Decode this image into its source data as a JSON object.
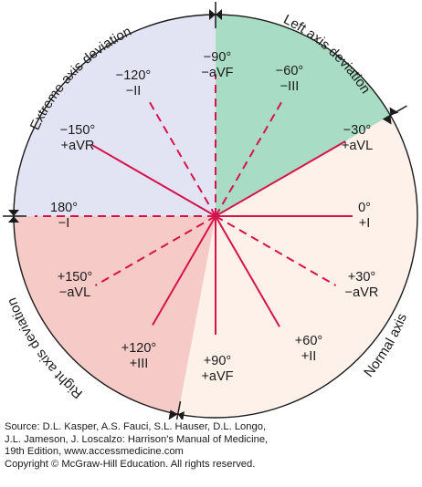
{
  "regions": [
    {
      "label": "Extreme axis deviation",
      "color": "#e2e4f3"
    },
    {
      "label": "Left axis deviation",
      "color": "#a9dcc4"
    },
    {
      "label": "Normal axis",
      "color": "#fdf1ea"
    },
    {
      "label": "Right axis deviation",
      "color": "#f6cac6"
    }
  ],
  "leads": [
    {
      "angle": 0,
      "angle_text": "0°",
      "lead": "+I",
      "style": "solid"
    },
    {
      "angle": 30,
      "angle_text": "+30°",
      "lead": "−aVR",
      "style": "dashed"
    },
    {
      "angle": 60,
      "angle_text": "+60°",
      "lead": "+II",
      "style": "solid"
    },
    {
      "angle": 90,
      "angle_text": "+90°",
      "lead": "+aVF",
      "style": "solid"
    },
    {
      "angle": 120,
      "angle_text": "+120°",
      "lead": "+III",
      "style": "solid"
    },
    {
      "angle": 150,
      "angle_text": "+150°",
      "lead": "−aVL",
      "style": "dashed"
    },
    {
      "angle": 180,
      "angle_text": "180°",
      "lead": "−I",
      "style": "dashed"
    },
    {
      "angle": -150,
      "angle_text": "−150°",
      "lead": "+aVR",
      "style": "solid"
    },
    {
      "angle": -120,
      "angle_text": "−120°",
      "lead": "−II",
      "style": "dashed"
    },
    {
      "angle": -90,
      "angle_text": "−90°",
      "lead": "−aVF",
      "style": "dashed"
    },
    {
      "angle": -60,
      "angle_text": "−60°",
      "lead": "−III",
      "style": "dashed"
    },
    {
      "angle": -30,
      "angle_text": "−30°",
      "lead": "+aVL",
      "style": "solid"
    }
  ],
  "line_color": "#d6124a",
  "source": [
    "Source: D.L. Kasper, A.S. Fauci, S.L. Hauser, D.L. Longo,",
    "J.L. Jameson, J. Loscalzo: Harrison's Manual of Medicine,",
    "19th Edition, www.accessmedicine.com",
    "Copyright © McGraw-Hill Education. All rights reserved."
  ]
}
